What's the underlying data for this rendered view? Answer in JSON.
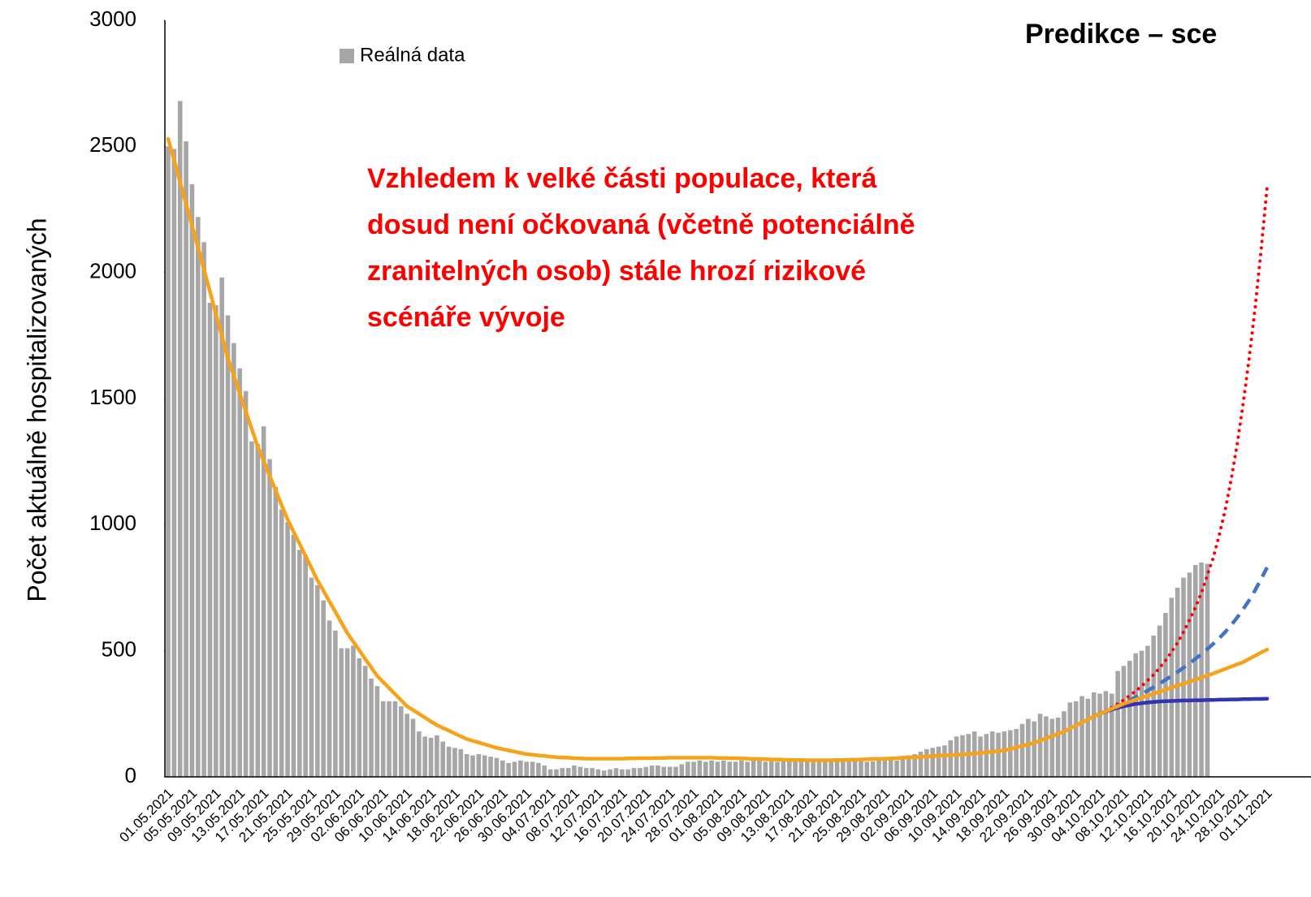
{
  "chart_data": {
    "type": "bar",
    "title": "Predikce – sce",
    "y_label": "Počet aktuálně hospitalizovaných",
    "annotation": [
      "Vzhledem k velké části populace, která",
      "dosud není očkovaná (včetně potenciálně",
      "zranitelných osob) stále hrozí rizikové",
      "scénáře vývoje"
    ],
    "annotation_color": "#ff0000",
    "ylim": [
      0,
      3000
    ],
    "yticks": [
      0,
      500,
      1000,
      1500,
      2000,
      2500,
      3000
    ],
    "grid": false,
    "legend": "top-left",
    "categories": [
      "01.05.2021",
      null,
      null,
      null,
      "05.05.2021",
      null,
      null,
      null,
      "09.05.2021",
      null,
      null,
      null,
      "13.05.2021",
      null,
      null,
      null,
      "17.05.2021",
      null,
      null,
      null,
      "21.05.2021",
      null,
      null,
      null,
      "25.05.2021",
      null,
      null,
      null,
      "29.05.2021",
      null,
      null,
      null,
      "02.06.2021",
      null,
      null,
      null,
      "06.06.2021",
      null,
      null,
      null,
      "10.06.2021",
      null,
      null,
      null,
      "14.06.2021",
      null,
      null,
      null,
      "18.06.2021",
      null,
      null,
      null,
      "22.06.2021",
      null,
      null,
      null,
      "26.06.2021",
      null,
      null,
      null,
      "30.06.2021",
      null,
      null,
      null,
      "04.07.2021",
      null,
      null,
      null,
      "08.07.2021",
      null,
      null,
      null,
      "12.07.2021",
      null,
      null,
      null,
      "16.07.2021",
      null,
      null,
      null,
      "20.07.2021",
      null,
      null,
      null,
      "24.07.2021",
      null,
      null,
      null,
      "28.07.2021",
      null,
      null,
      null,
      "01.08.2021",
      null,
      null,
      null,
      "05.08.2021",
      null,
      null,
      null,
      "09.08.2021",
      null,
      null,
      null,
      "13.08.2021",
      null,
      null,
      null,
      "17.08.2021",
      null,
      null,
      null,
      "21.08.2021",
      null,
      null,
      null,
      "25.08.2021",
      null,
      null,
      null,
      "29.08.2021",
      null,
      null,
      null,
      "02.09.2021",
      null,
      null,
      null,
      "06.09.2021",
      null,
      null,
      null,
      "10.09.2021",
      null,
      null,
      null,
      "14.09.2021",
      null,
      null,
      null,
      "18.09.2021",
      null,
      null,
      null,
      "22.09.2021",
      null,
      null,
      null,
      "26.09.2021",
      null,
      null,
      null,
      "30.09.2021",
      null,
      null,
      null,
      "04.10.2021",
      null,
      null,
      null,
      "08.10.2021",
      null,
      null,
      null,
      "12.10.2021",
      null,
      null,
      null,
      "16.10.2021",
      null,
      null,
      null,
      "20.10.2021",
      null,
      null,
      null,
      "24.10.2021",
      null,
      null,
      null,
      "28.10.2021",
      null,
      null,
      null,
      "01.11.2021"
    ],
    "series": [
      {
        "name": "Reálná data",
        "type": "bar",
        "color": "#a6a6a6",
        "values": [
          2500,
          2490,
          2680,
          2520,
          2350,
          2220,
          2120,
          1880,
          1870,
          1980,
          1830,
          1720,
          1620,
          1530,
          1330,
          1320,
          1390,
          1260,
          1150,
          1060,
          1010,
          960,
          900,
          880,
          790,
          760,
          700,
          620,
          580,
          510,
          510,
          520,
          470,
          440,
          390,
          360,
          300,
          300,
          300,
          280,
          250,
          230,
          180,
          160,
          155,
          165,
          140,
          120,
          115,
          110,
          90,
          85,
          90,
          85,
          80,
          75,
          65,
          55,
          60,
          65,
          60,
          60,
          55,
          45,
          30,
          30,
          35,
          35,
          45,
          40,
          35,
          35,
          30,
          25,
          30,
          35,
          30,
          30,
          35,
          35,
          40,
          45,
          45,
          40,
          40,
          40,
          50,
          60,
          60,
          65,
          60,
          65,
          60,
          65,
          60,
          60,
          65,
          60,
          65,
          65,
          60,
          62,
          60,
          65,
          62,
          60,
          65,
          60,
          62,
          65,
          66,
          65,
          68,
          70,
          72,
          70,
          65,
          60,
          62,
          65,
          68,
          70,
          65,
          75,
          85,
          90,
          100,
          110,
          115,
          120,
          125,
          145,
          160,
          165,
          170,
          180,
          160,
          170,
          180,
          175,
          180,
          185,
          190,
          210,
          230,
          220,
          250,
          240,
          230,
          235,
          260,
          295,
          300,
          320,
          310,
          335,
          330,
          340,
          330,
          420,
          440,
          460,
          490,
          500,
          520,
          560,
          600,
          650,
          710,
          750,
          790,
          810,
          840,
          850,
          845,
          null,
          null,
          null,
          null,
          null,
          null,
          null,
          null,
          null,
          null
        ]
      },
      {
        "type": "line",
        "color": "#ff0000",
        "dash": "dotted",
        "values": [
          null,
          null,
          null,
          null,
          null,
          null,
          null,
          null,
          null,
          null,
          null,
          null,
          null,
          null,
          null,
          null,
          null,
          null,
          null,
          null,
          null,
          null,
          null,
          null,
          null,
          null,
          null,
          null,
          null,
          null,
          null,
          null,
          null,
          null,
          null,
          null,
          null,
          null,
          null,
          null,
          null,
          null,
          null,
          null,
          null,
          null,
          null,
          null,
          null,
          null,
          null,
          null,
          null,
          null,
          null,
          null,
          null,
          null,
          null,
          null,
          null,
          null,
          null,
          null,
          null,
          null,
          null,
          null,
          null,
          null,
          null,
          null,
          null,
          null,
          null,
          null,
          null,
          null,
          null,
          null,
          null,
          null,
          null,
          null,
          null,
          null,
          null,
          null,
          null,
          null,
          null,
          null,
          null,
          null,
          null,
          null,
          null,
          null,
          null,
          null,
          null,
          null,
          null,
          null,
          null,
          null,
          null,
          null,
          null,
          null,
          null,
          null,
          null,
          null,
          null,
          null,
          null,
          null,
          null,
          null,
          null,
          null,
          null,
          null,
          null,
          null,
          null,
          null,
          null,
          null,
          null,
          null,
          null,
          null,
          null,
          null,
          null,
          null,
          null,
          null,
          null,
          null,
          null,
          null,
          null,
          null,
          null,
          null,
          null,
          null,
          null,
          null,
          null,
          null,
          null,
          240,
          250,
          262,
          275,
          290,
          305,
          322,
          340,
          360,
          382,
          405,
          432,
          462,
          495,
          532,
          575,
          622,
          672,
          730,
          800,
          870,
          960,
          1060,
          1180,
          1320,
          1480,
          1660,
          1860,
          2090,
          2340
        ]
      },
      {
        "type": "line",
        "color": "#4472c4",
        "dash": "dashed",
        "values": [
          null,
          null,
          null,
          null,
          null,
          null,
          null,
          null,
          null,
          null,
          null,
          null,
          null,
          null,
          null,
          null,
          null,
          null,
          null,
          null,
          null,
          null,
          null,
          null,
          null,
          null,
          null,
          null,
          null,
          null,
          null,
          null,
          null,
          null,
          null,
          null,
          null,
          null,
          null,
          null,
          null,
          null,
          null,
          null,
          null,
          null,
          null,
          null,
          null,
          null,
          null,
          null,
          null,
          null,
          null,
          null,
          null,
          null,
          null,
          null,
          null,
          null,
          null,
          null,
          null,
          null,
          null,
          null,
          null,
          null,
          null,
          null,
          null,
          null,
          null,
          null,
          null,
          null,
          null,
          null,
          null,
          null,
          null,
          null,
          null,
          null,
          null,
          null,
          null,
          null,
          null,
          null,
          null,
          null,
          null,
          null,
          null,
          null,
          null,
          null,
          null,
          null,
          null,
          null,
          null,
          null,
          null,
          null,
          null,
          null,
          null,
          null,
          null,
          null,
          null,
          null,
          null,
          null,
          null,
          null,
          null,
          null,
          null,
          null,
          null,
          null,
          null,
          null,
          null,
          null,
          null,
          null,
          null,
          null,
          null,
          null,
          null,
          null,
          null,
          null,
          null,
          null,
          null,
          null,
          null,
          null,
          null,
          null,
          null,
          null,
          null,
          null,
          null,
          null,
          null,
          240,
          250,
          260,
          270,
          281,
          292,
          304,
          316,
          329,
          342,
          356,
          370,
          385,
          400,
          416,
          433,
          450,
          468,
          487,
          507,
          528,
          550,
          575,
          602,
          632,
          665,
          700,
          740,
          785,
          830
        ]
      },
      {
        "type": "line",
        "color": "#3232b4",
        "dash": "solid",
        "values": [
          null,
          null,
          null,
          null,
          null,
          null,
          null,
          null,
          null,
          null,
          null,
          null,
          null,
          null,
          null,
          null,
          null,
          null,
          null,
          null,
          null,
          null,
          null,
          null,
          null,
          null,
          null,
          null,
          null,
          null,
          null,
          null,
          null,
          null,
          null,
          null,
          null,
          null,
          null,
          null,
          null,
          null,
          null,
          null,
          null,
          null,
          null,
          null,
          null,
          null,
          null,
          null,
          null,
          null,
          null,
          null,
          null,
          null,
          null,
          null,
          null,
          null,
          null,
          null,
          null,
          null,
          null,
          null,
          null,
          null,
          null,
          null,
          null,
          null,
          null,
          null,
          null,
          null,
          null,
          null,
          null,
          null,
          null,
          null,
          null,
          null,
          null,
          null,
          null,
          null,
          null,
          null,
          null,
          null,
          null,
          null,
          null,
          null,
          null,
          null,
          null,
          null,
          null,
          null,
          null,
          null,
          null,
          null,
          null,
          null,
          null,
          null,
          null,
          null,
          null,
          null,
          null,
          null,
          null,
          null,
          null,
          null,
          null,
          null,
          null,
          null,
          null,
          null,
          null,
          null,
          null,
          null,
          null,
          null,
          null,
          null,
          null,
          null,
          null,
          null,
          null,
          null,
          null,
          null,
          null,
          null,
          null,
          null,
          null,
          null,
          null,
          null,
          null,
          null,
          null,
          240,
          250,
          259,
          267,
          274,
          280,
          285,
          289,
          292,
          295,
          297,
          299,
          300,
          301,
          302,
          303,
          303,
          304,
          304,
          305,
          305,
          306,
          306,
          307,
          307,
          308,
          308,
          309,
          309,
          310
        ]
      },
      {
        "type": "line",
        "color": "#f7a21b",
        "dash": "solid",
        "values": [
          2530,
          2444,
          2358,
          2272,
          2186,
          2100,
          2012,
          1924,
          1836,
          1748,
          1660,
          1590,
          1520,
          1450,
          1380,
          1310,
          1252,
          1194,
          1136,
          1078,
          1020,
          972,
          924,
          876,
          828,
          780,
          738,
          696,
          654,
          612,
          570,
          536,
          502,
          468,
          434,
          400,
          376,
          352,
          328,
          304,
          280,
          265,
          250,
          235,
          220,
          205,
          194,
          183,
          172,
          161,
          150,
          143,
          136,
          129,
          122,
          115,
          110,
          105,
          100,
          95,
          90,
          88,
          85,
          83,
          80,
          78,
          77,
          76,
          74,
          73,
          72,
          72,
          72,
          72,
          72,
          72,
          72,
          73,
          73,
          74,
          74,
          74,
          75,
          75,
          76,
          76,
          76,
          76,
          76,
          76,
          76,
          76,
          75,
          75,
          74,
          74,
          73,
          72,
          71,
          71,
          70,
          69,
          69,
          68,
          67,
          67,
          67,
          66,
          66,
          66,
          66,
          66,
          67,
          67,
          68,
          68,
          69,
          70,
          71,
          71,
          72,
          73,
          74,
          76,
          77,
          78,
          79,
          81,
          82,
          84,
          85,
          86,
          88,
          89,
          91,
          92,
          95,
          97,
          100,
          102,
          105,
          111,
          117,
          123,
          129,
          135,
          144,
          153,
          162,
          171,
          180,
          192,
          204,
          216,
          228,
          240,
          250,
          260,
          270,
          280,
          290,
          298,
          306,
          314,
          322,
          330,
          338,
          346,
          354,
          362,
          370,
          378,
          386,
          394,
          402,
          410,
          419,
          428,
          437,
          446,
          455,
          468,
          480,
          493,
          505
        ]
      }
    ]
  }
}
